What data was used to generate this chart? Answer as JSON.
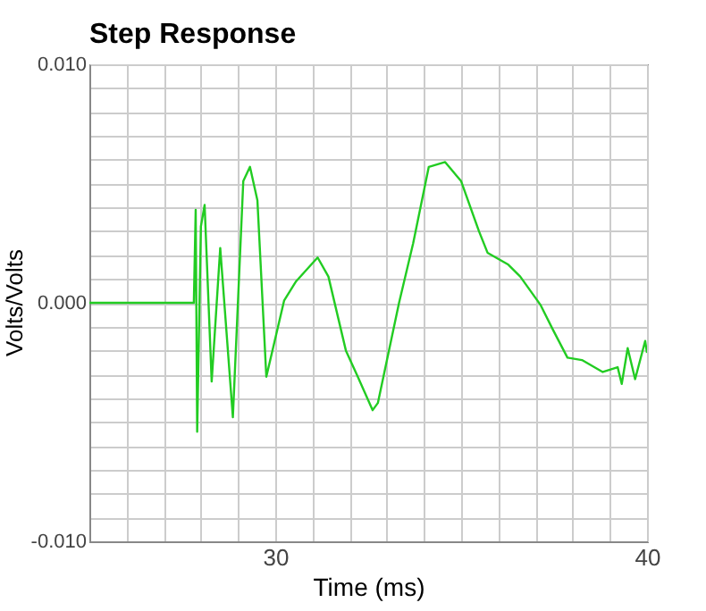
{
  "chart_data": {
    "type": "line",
    "title": "Step Response",
    "xlabel": "Time (ms)",
    "ylabel": "Volts/Volts",
    "xlim": [
      25,
      40
    ],
    "ylim": [
      -0.01,
      0.01
    ],
    "xticks": [
      {
        "value": 25,
        "label": null
      },
      {
        "value": 26,
        "label": null
      },
      {
        "value": 27,
        "label": null
      },
      {
        "value": 28,
        "label": null
      },
      {
        "value": 29,
        "label": null
      },
      30,
      {
        "value": 31,
        "label": null
      },
      {
        "value": 32,
        "label": null
      },
      {
        "value": 33,
        "label": null
      },
      {
        "value": 34,
        "label": null
      },
      {
        "value": 35,
        "label": null
      },
      {
        "value": 36,
        "label": null
      },
      {
        "value": 37,
        "label": null
      },
      {
        "value": 38,
        "label": null
      },
      {
        "value": 39,
        "label": null
      },
      40
    ],
    "yticks": [
      {
        "value": -0.01,
        "label": "-0.010"
      },
      {
        "value": -0.009,
        "label": null
      },
      {
        "value": -0.008,
        "label": null
      },
      {
        "value": -0.007,
        "label": null
      },
      {
        "value": -0.006,
        "label": null
      },
      {
        "value": -0.005,
        "label": null
      },
      {
        "value": -0.004,
        "label": null
      },
      {
        "value": -0.003,
        "label": null
      },
      {
        "value": -0.002,
        "label": null
      },
      {
        "value": -0.001,
        "label": null
      },
      {
        "value": 0,
        "label": "0.000"
      },
      {
        "value": 0.001,
        "label": null
      },
      {
        "value": 0.002,
        "label": null
      },
      {
        "value": 0.003,
        "label": null
      },
      {
        "value": 0.004,
        "label": null
      },
      {
        "value": 0.005,
        "label": null
      },
      {
        "value": 0.006,
        "label": null
      },
      {
        "value": 0.007,
        "label": null
      },
      {
        "value": 0.008,
        "label": null
      },
      {
        "value": 0.009,
        "label": null
      },
      {
        "value": 0.01,
        "label": "0.010"
      }
    ],
    "grid": true,
    "marker": "none",
    "line_style": "solid",
    "series": [
      {
        "color": "#22cc22",
        "x": [
          25,
          27.81,
          27.86,
          27.9,
          28.0,
          28.1,
          28.29,
          28.52,
          28.86,
          29.14,
          29.32,
          29.52,
          29.76,
          30.24,
          30.56,
          31.14,
          31.43,
          31.9,
          32.22,
          32.62,
          32.76,
          33.33,
          33.71,
          34.13,
          34.57,
          35.0,
          35.48,
          35.71,
          36.27,
          36.59,
          37.14,
          37.46,
          37.86,
          38.25,
          38.81,
          39.21,
          39.32,
          39.48,
          39.68,
          39.95,
          40
        ],
        "values": [
          0,
          0,
          0.0039,
          -0.0054,
          0.0032,
          0.0041,
          -0.0033,
          0.0023,
          -0.0048,
          0.0051,
          0.0057,
          0.0043,
          -0.0031,
          0.0001,
          0.0009,
          0.0019,
          0.0011,
          -0.002,
          -0.0031,
          -0.0045,
          -0.0042,
          0,
          0.0025,
          0.0057,
          0.0059,
          0.0051,
          0.003,
          0.0021,
          0.0016,
          0.0011,
          -0.0001,
          -0.0011,
          -0.0023,
          -0.0024,
          -0.0029,
          -0.0027,
          -0.0034,
          -0.0019,
          -0.0032,
          -0.0016,
          -0.0021
        ]
      }
    ]
  }
}
